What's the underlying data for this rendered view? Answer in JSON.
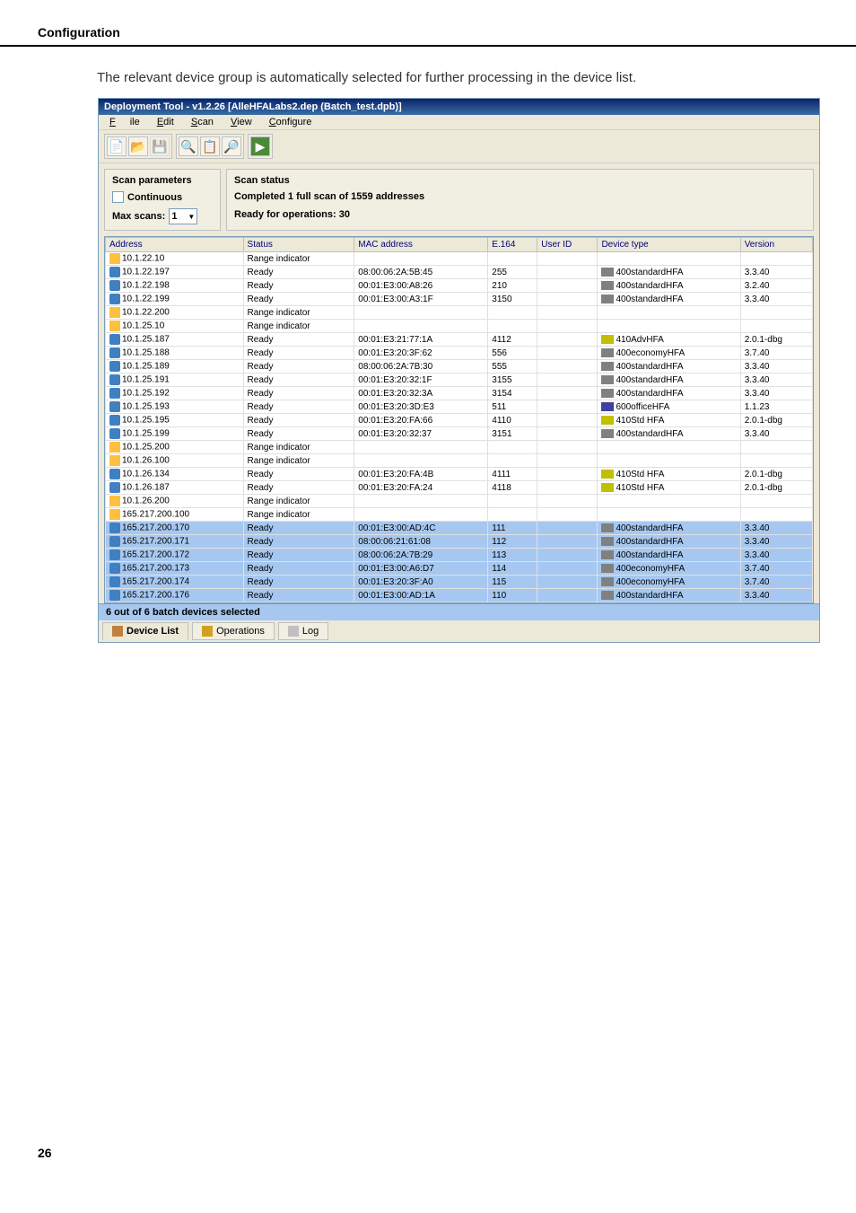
{
  "page": {
    "section_title": "Configuration",
    "intro_text": "The relevant device group is automatically selected for further processing in the device list.",
    "page_number": "26"
  },
  "window": {
    "title": "Deployment Tool - v1.2.26  [AlleHFALabs2.dep (Batch_test.dpb)]",
    "menu": {
      "file": "File",
      "edit": "Edit",
      "scan": "Scan",
      "view": "View",
      "configure": "Configure"
    }
  },
  "scan_params": {
    "panel_title": "Scan parameters",
    "continuous_label": "Continuous",
    "max_scans_label": "Max scans:",
    "max_scans_value": "1"
  },
  "scan_status": {
    "panel_title": "Scan status",
    "line1": "Completed 1 full scan of 1559 addresses",
    "line2": "Ready for operations: 30"
  },
  "columns": [
    "Address",
    "Status",
    "MAC address",
    "E.164",
    "User ID",
    "Device type",
    "Version"
  ],
  "rows": [
    {
      "t": "range",
      "addr": "10.1.22.10",
      "status": "Range indicator",
      "mac": "",
      "e164": "",
      "uid": "",
      "dtype": "",
      "ver": "",
      "ic": "range"
    },
    {
      "t": "n",
      "addr": "10.1.22.197",
      "status": "Ready",
      "mac": "08:00:06:2A:5B:45",
      "e164": "255",
      "uid": "",
      "dtype": "400standardHFA",
      "ver": "3.3.40",
      "ic": "dev",
      "dic": "1"
    },
    {
      "t": "n",
      "addr": "10.1.22.198",
      "status": "Ready",
      "mac": "00:01:E3:00:A8:26",
      "e164": "210",
      "uid": "",
      "dtype": "400standardHFA",
      "ver": "3.2.40",
      "ic": "dev",
      "dic": "1"
    },
    {
      "t": "n",
      "addr": "10.1.22.199",
      "status": "Ready",
      "mac": "00:01:E3:00:A3:1F",
      "e164": "3150",
      "uid": "",
      "dtype": "400standardHFA",
      "ver": "3.3.40",
      "ic": "dev",
      "dic": "1"
    },
    {
      "t": "range",
      "addr": "10.1.22.200",
      "status": "Range indicator",
      "mac": "",
      "e164": "",
      "uid": "",
      "dtype": "",
      "ver": "",
      "ic": "range"
    },
    {
      "t": "range",
      "addr": "10.1.25.10",
      "status": "Range indicator",
      "mac": "",
      "e164": "",
      "uid": "",
      "dtype": "",
      "ver": "",
      "ic": "range"
    },
    {
      "t": "n",
      "addr": "10.1.25.187",
      "status": "Ready",
      "mac": "00:01:E3:21:77:1A",
      "e164": "4112",
      "uid": "",
      "dtype": "410AdvHFA",
      "ver": "2.0.1-dbg",
      "ic": "dev",
      "dic": "2"
    },
    {
      "t": "n",
      "addr": "10.1.25.188",
      "status": "Ready",
      "mac": "00:01:E3:20:3F:62",
      "e164": "556",
      "uid": "",
      "dtype": "400economyHFA",
      "ver": "3.7.40",
      "ic": "dev",
      "dic": "1"
    },
    {
      "t": "n",
      "addr": "10.1.25.189",
      "status": "Ready",
      "mac": "08:00:06:2A:7B:30",
      "e164": "555",
      "uid": "",
      "dtype": "400standardHFA",
      "ver": "3.3.40",
      "ic": "dev",
      "dic": "1"
    },
    {
      "t": "n",
      "addr": "10.1.25.191",
      "status": "Ready",
      "mac": "00:01:E3:20:32:1F",
      "e164": "3155",
      "uid": "",
      "dtype": "400standardHFA",
      "ver": "3.3.40",
      "ic": "dev",
      "dic": "1"
    },
    {
      "t": "n",
      "addr": "10.1.25.192",
      "status": "Ready",
      "mac": "00:01:E3:20:32:3A",
      "e164": "3154",
      "uid": "",
      "dtype": "400standardHFA",
      "ver": "3.3.40",
      "ic": "dev",
      "dic": "1"
    },
    {
      "t": "n",
      "addr": "10.1.25.193",
      "status": "Ready",
      "mac": "00:01:E3:20:3D:E3",
      "e164": "511",
      "uid": "",
      "dtype": "600officeHFA",
      "ver": "1.1.23",
      "ic": "dev",
      "dic": "3"
    },
    {
      "t": "n",
      "addr": "10.1.25.195",
      "status": "Ready",
      "mac": "00:01:E3:20:FA:66",
      "e164": "4110",
      "uid": "",
      "dtype": "410Std HFA",
      "ver": "2.0.1-dbg",
      "ic": "dev",
      "dic": "2"
    },
    {
      "t": "n",
      "addr": "10.1.25.199",
      "status": "Ready",
      "mac": "00:01:E3:20:32:37",
      "e164": "3151",
      "uid": "",
      "dtype": "400standardHFA",
      "ver": "3.3.40",
      "ic": "dev",
      "dic": "1"
    },
    {
      "t": "range",
      "addr": "10.1.25.200",
      "status": "Range indicator",
      "mac": "",
      "e164": "",
      "uid": "",
      "dtype": "",
      "ver": "",
      "ic": "range"
    },
    {
      "t": "range",
      "addr": "10.1.26.100",
      "status": "Range indicator",
      "mac": "",
      "e164": "",
      "uid": "",
      "dtype": "",
      "ver": "",
      "ic": "range"
    },
    {
      "t": "n",
      "addr": "10.1.26.134",
      "status": "Ready",
      "mac": "00:01:E3:20:FA:4B",
      "e164": "4111",
      "uid": "",
      "dtype": "410Std HFA",
      "ver": "2.0.1-dbg",
      "ic": "dev",
      "dic": "2"
    },
    {
      "t": "n",
      "addr": "10.1.26.187",
      "status": "Ready",
      "mac": "00:01:E3:20:FA:24",
      "e164": "4118",
      "uid": "",
      "dtype": "410Std HFA",
      "ver": "2.0.1-dbg",
      "ic": "dev",
      "dic": "2"
    },
    {
      "t": "range",
      "addr": "10.1.26.200",
      "status": "Range indicator",
      "mac": "",
      "e164": "",
      "uid": "",
      "dtype": "",
      "ver": "",
      "ic": "range"
    },
    {
      "t": "range",
      "addr": "165.217.200.100",
      "status": "Range indicator",
      "mac": "",
      "e164": "",
      "uid": "",
      "dtype": "",
      "ver": "",
      "ic": "range"
    },
    {
      "t": "sel",
      "addr": "165.217.200.170",
      "status": "Ready",
      "mac": "00:01:E3:00:AD:4C",
      "e164": "111",
      "uid": "",
      "dtype": "400standardHFA",
      "ver": "3.3.40",
      "ic": "dev",
      "dic": "1"
    },
    {
      "t": "sel",
      "addr": "165.217.200.171",
      "status": "Ready",
      "mac": "08:00:06:21:61:08",
      "e164": "112",
      "uid": "",
      "dtype": "400standardHFA",
      "ver": "3.3.40",
      "ic": "dev",
      "dic": "1"
    },
    {
      "t": "sel",
      "addr": "165.217.200.172",
      "status": "Ready",
      "mac": "08:00:06:2A:7B:29",
      "e164": "113",
      "uid": "",
      "dtype": "400standardHFA",
      "ver": "3.3.40",
      "ic": "dev",
      "dic": "1"
    },
    {
      "t": "sel",
      "addr": "165.217.200.173",
      "status": "Ready",
      "mac": "00:01:E3:00:A6:D7",
      "e164": "114",
      "uid": "",
      "dtype": "400economyHFA",
      "ver": "3.7.40",
      "ic": "dev",
      "dic": "1"
    },
    {
      "t": "sel",
      "addr": "165.217.200.174",
      "status": "Ready",
      "mac": "00:01:E3:20:3F:A0",
      "e164": "115",
      "uid": "",
      "dtype": "400economyHFA",
      "ver": "3.7.40",
      "ic": "dev",
      "dic": "1"
    },
    {
      "t": "sel",
      "addr": "165.217.200.176",
      "status": "Ready",
      "mac": "00:01:E3:00:AD:1A",
      "e164": "110",
      "uid": "",
      "dtype": "400standardHFA",
      "ver": "3.3.40",
      "ic": "dev",
      "dic": "1"
    }
  ],
  "footer": {
    "selected_text": "6 out of 6 batch devices selected"
  },
  "tabs": {
    "device_list": "Device List",
    "operations": "Operations",
    "log": "Log"
  }
}
